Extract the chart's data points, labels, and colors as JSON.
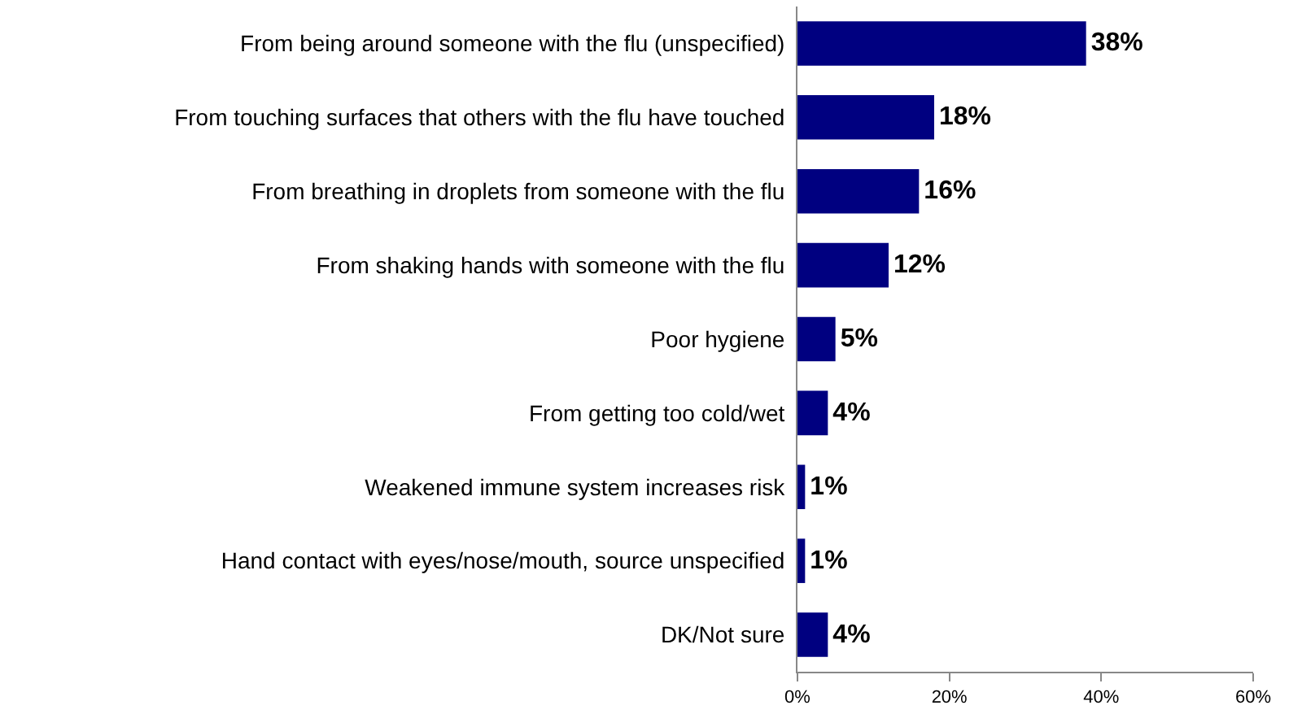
{
  "chart_data": {
    "type": "bar",
    "orientation": "horizontal",
    "categories": [
      "From being around someone with the flu (unspecified)",
      "From touching surfaces that others with the flu have touched",
      "From breathing in droplets from someone with the flu",
      "From shaking hands with someone with the flu",
      "Poor hygiene",
      "From getting too cold/wet",
      "Weakened immune system increases risk",
      "Hand contact with eyes/nose/mouth, source unspecified",
      "DK/Not sure"
    ],
    "values": [
      38,
      18,
      16,
      12,
      5,
      4,
      1,
      1,
      4
    ],
    "value_labels": [
      "38%",
      "18%",
      "16%",
      "12%",
      "5%",
      "4%",
      "1%",
      "1%",
      "4%"
    ],
    "color": "#000080",
    "xlim": [
      0,
      60
    ],
    "xticks": [
      {
        "value": 0,
        "label": "0%"
      },
      {
        "value": 20,
        "label": "20%"
      },
      {
        "value": 40,
        "label": "40%"
      },
      {
        "value": 60,
        "label": "60%"
      }
    ]
  }
}
